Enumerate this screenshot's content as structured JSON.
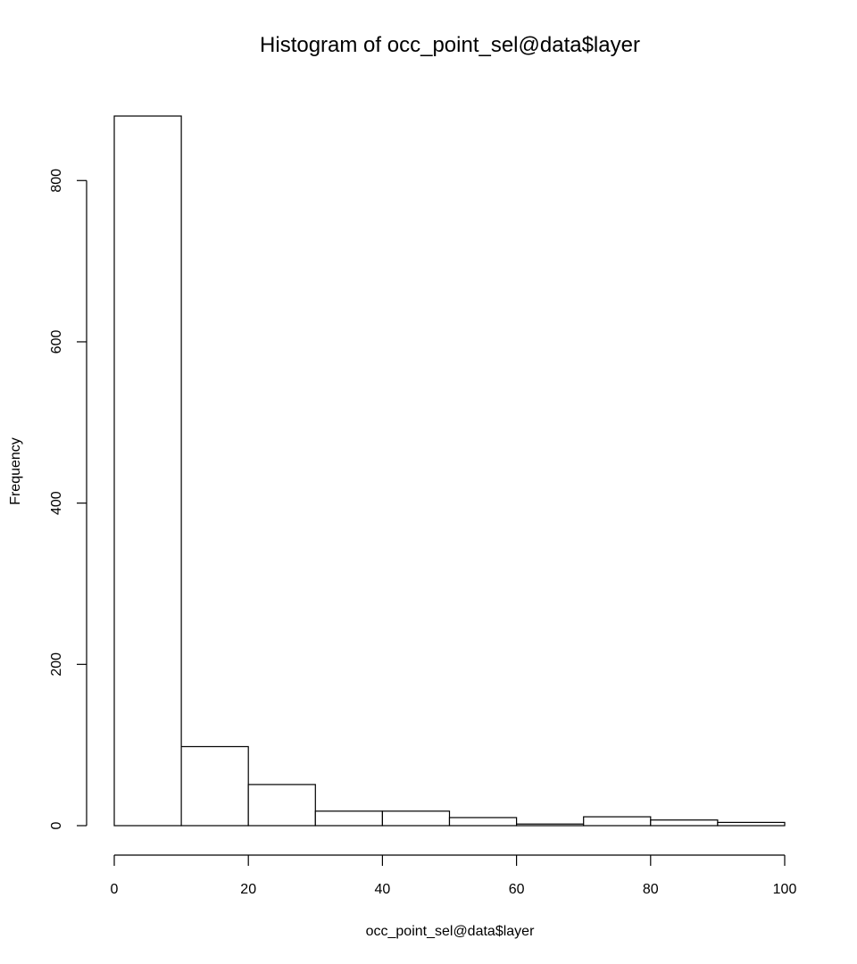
{
  "chart_data": {
    "type": "bar",
    "title": "Histogram of occ_point_sel@data$layer",
    "xlabel": "occ_point_sel@data$layer",
    "ylabel": "Frequency",
    "xlim": [
      0,
      100
    ],
    "ylim": [
      0,
      880
    ],
    "x_ticks": [
      0,
      20,
      40,
      60,
      80,
      100
    ],
    "y_ticks": [
      0,
      200,
      400,
      600,
      800
    ],
    "bins": [
      {
        "start": 0,
        "end": 10,
        "value": 880
      },
      {
        "start": 10,
        "end": 20,
        "value": 98
      },
      {
        "start": 20,
        "end": 30,
        "value": 51
      },
      {
        "start": 30,
        "end": 40,
        "value": 18
      },
      {
        "start": 40,
        "end": 50,
        "value": 18
      },
      {
        "start": 50,
        "end": 60,
        "value": 10
      },
      {
        "start": 60,
        "end": 70,
        "value": 2
      },
      {
        "start": 70,
        "end": 80,
        "value": 11
      },
      {
        "start": 80,
        "end": 90,
        "value": 7
      },
      {
        "start": 90,
        "end": 100,
        "value": 4
      }
    ],
    "grid": false,
    "legend": "none"
  }
}
